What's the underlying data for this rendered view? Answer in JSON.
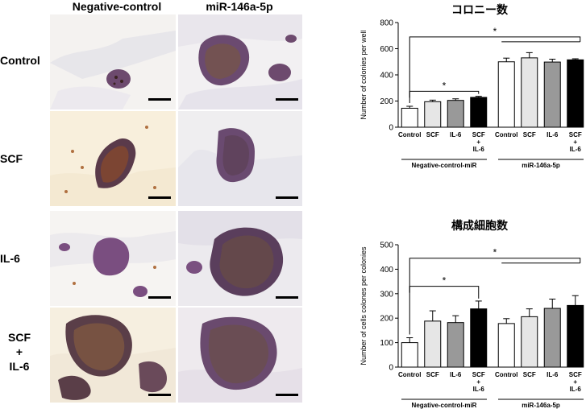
{
  "figure": {
    "columns": [
      "Negative-control",
      "miR-146a-5p"
    ],
    "rows": [
      {
        "label": "Control"
      },
      {
        "label": "SCF"
      },
      {
        "label": "IL-6"
      },
      {
        "label_lines": [
          "SCF",
          "+",
          "IL-6"
        ]
      }
    ]
  },
  "chart_data": [
    {
      "type": "bar",
      "title": "コロニー数",
      "ylabel": "Number of colonies per well",
      "ylim": [
        0,
        800
      ],
      "yticks": [
        0,
        200,
        400,
        600,
        800
      ],
      "categories": [
        "Control",
        "SCF",
        "IL-6",
        "SCF + IL-6",
        "Control",
        "SCF",
        "IL-6",
        "SCF + IL-6"
      ],
      "category_lines": [
        [
          "Control"
        ],
        [
          "SCF"
        ],
        [
          "IL-6"
        ],
        [
          "SCF",
          "+",
          "IL-6"
        ],
        [
          "Control"
        ],
        [
          "SCF"
        ],
        [
          "IL-6"
        ],
        [
          "SCF",
          "+",
          "IL-6"
        ]
      ],
      "groups": [
        "Negative-control-miR",
        "miR-146a-5p"
      ],
      "values": [
        145,
        195,
        205,
        228,
        500,
        530,
        498,
        515
      ],
      "errors": [
        15,
        12,
        12,
        8,
        28,
        40,
        22,
        8
      ],
      "bar_colors": [
        "#ffffff",
        "#e6e6e6",
        "#999999",
        "#000000",
        "#ffffff",
        "#e6e6e6",
        "#999999",
        "#000000"
      ],
      "significance": [
        "*",
        "*"
      ],
      "grid": false
    },
    {
      "type": "bar",
      "title": "構成細胞数",
      "ylabel": "Number of cells colones per colonies",
      "ylim": [
        0,
        500
      ],
      "yticks": [
        0,
        100,
        200,
        300,
        400,
        500
      ],
      "categories": [
        "Control",
        "SCF",
        "IL-6",
        "SCF + IL-6",
        "Control",
        "SCF",
        "IL-6",
        "SCF + IL-6"
      ],
      "category_lines": [
        [
          "Control"
        ],
        [
          "SCF"
        ],
        [
          "IL-6"
        ],
        [
          "SCF",
          "+",
          "IL-6"
        ],
        [
          "Control"
        ],
        [
          "SCF"
        ],
        [
          "IL-6"
        ],
        [
          "SCF",
          "+",
          "IL-6"
        ]
      ],
      "groups": [
        "Negative-control-miR",
        "miR-146a-5p"
      ],
      "values": [
        100,
        188,
        182,
        238,
        178,
        206,
        240,
        252
      ],
      "errors": [
        20,
        42,
        28,
        32,
        20,
        32,
        38,
        40
      ],
      "bar_colors": [
        "#ffffff",
        "#e6e6e6",
        "#999999",
        "#000000",
        "#ffffff",
        "#e6e6e6",
        "#999999",
        "#000000"
      ],
      "significance": [
        "*",
        "*"
      ],
      "grid": false
    }
  ]
}
